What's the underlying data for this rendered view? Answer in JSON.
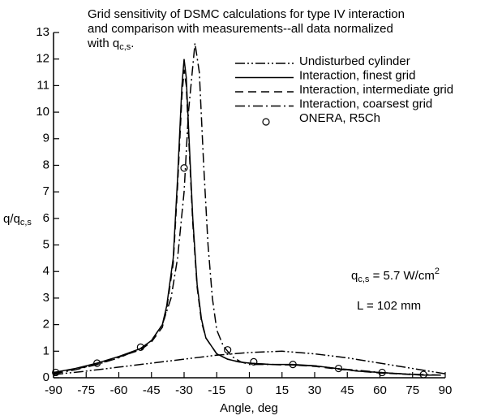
{
  "chart_data": {
    "type": "line",
    "title": [
      "Grid sensitivity of DSMC calculations for type IV interaction",
      "and comparison with measurements--all data  normalized",
      [
        "with q",
        "c,s",
        "."
      ]
    ],
    "x_label": "Angle, deg",
    "y_label": [
      "q/q",
      "c,s"
    ],
    "annotations": [
      [
        "q",
        "c,s",
        " = 5.7 W/cm",
        "2"
      ],
      "L = 102 mm"
    ],
    "xlim": [
      -90,
      90
    ],
    "xticks": [
      -90,
      -75,
      -60,
      -45,
      -30,
      -15,
      0,
      15,
      30,
      45,
      60,
      75,
      90
    ],
    "ylim": [
      0,
      13
    ],
    "yticks": [
      0,
      1,
      2,
      3,
      4,
      5,
      6,
      7,
      8,
      9,
      10,
      11,
      12,
      13
    ],
    "series": [
      {
        "name": "Undisturbed cylinder",
        "color": "#000000",
        "dash": "12,3,2,3,2,3",
        "x": [
          -90,
          -75,
          -60,
          -45,
          -30,
          -15,
          0,
          15,
          30,
          45,
          60,
          75,
          90
        ],
        "values": [
          0.12,
          0.25,
          0.4,
          0.55,
          0.7,
          0.85,
          0.95,
          1.0,
          0.9,
          0.75,
          0.55,
          0.35,
          0.15
        ]
      },
      {
        "name": "Interaction, finest grid",
        "color": "#000000",
        "dash": "none",
        "x": [
          -90,
          -80,
          -70,
          -60,
          -50,
          -45,
          -40,
          -38,
          -35,
          -33,
          -31,
          -30,
          -29,
          -28,
          -26,
          -24,
          -22,
          -20,
          -15,
          -10,
          -5,
          0,
          10,
          20,
          30,
          40,
          50,
          60,
          70,
          80,
          88
        ],
        "values": [
          0.2,
          0.35,
          0.55,
          0.8,
          1.1,
          1.4,
          2.0,
          2.7,
          4.5,
          7.5,
          11.0,
          12.0,
          11.3,
          9.5,
          6.0,
          3.5,
          2.2,
          1.5,
          0.9,
          0.7,
          0.6,
          0.55,
          0.5,
          0.5,
          0.45,
          0.35,
          0.25,
          0.2,
          0.15,
          0.1,
          0.1
        ]
      },
      {
        "name": "Interaction, intermediate grid",
        "color": "#000000",
        "dash": "10,6",
        "x": [
          -90,
          -80,
          -70,
          -60,
          -50,
          -45,
          -40,
          -38,
          -35,
          -33,
          -31,
          -30,
          -29,
          -28,
          -26,
          -24,
          -22,
          -20,
          -15,
          -10,
          -5,
          0,
          10,
          20,
          30,
          40,
          50,
          60,
          70,
          80,
          88
        ],
        "values": [
          0.18,
          0.33,
          0.5,
          0.78,
          1.05,
          1.35,
          1.9,
          2.6,
          4.3,
          7.2,
          10.6,
          11.6,
          11.0,
          9.2,
          5.8,
          3.4,
          2.1,
          1.5,
          0.9,
          0.7,
          0.6,
          0.55,
          0.5,
          0.48,
          0.43,
          0.33,
          0.25,
          0.18,
          0.14,
          0.1,
          0.1
        ]
      },
      {
        "name": "Interaction, coarsest grid",
        "color": "#000000",
        "dash": "12,4,2,4",
        "x": [
          -90,
          -80,
          -70,
          -60,
          -50,
          -45,
          -40,
          -36,
          -33,
          -30,
          -28,
          -25,
          -23,
          -21,
          -19,
          -17,
          -15,
          -12,
          -8,
          -4,
          0,
          10,
          20,
          30,
          40,
          50,
          60,
          70,
          80,
          88
        ],
        "values": [
          0.15,
          0.3,
          0.5,
          0.75,
          1.1,
          1.4,
          2.0,
          3.0,
          4.5,
          7.0,
          10.0,
          12.6,
          11.5,
          8.0,
          5.0,
          3.0,
          1.8,
          1.2,
          0.8,
          0.6,
          0.5,
          0.5,
          0.48,
          0.45,
          0.35,
          0.28,
          0.2,
          0.15,
          0.12,
          0.1
        ]
      },
      {
        "name": "ONERA, R5Ch",
        "color": "#000000",
        "marker": "circle",
        "x": [
          -89,
          -70,
          -50,
          -30,
          -10,
          2,
          20,
          41,
          61,
          80
        ],
        "values": [
          0.2,
          0.55,
          1.15,
          7.9,
          1.05,
          0.6,
          0.5,
          0.35,
          0.2,
          0.12
        ]
      }
    ]
  }
}
